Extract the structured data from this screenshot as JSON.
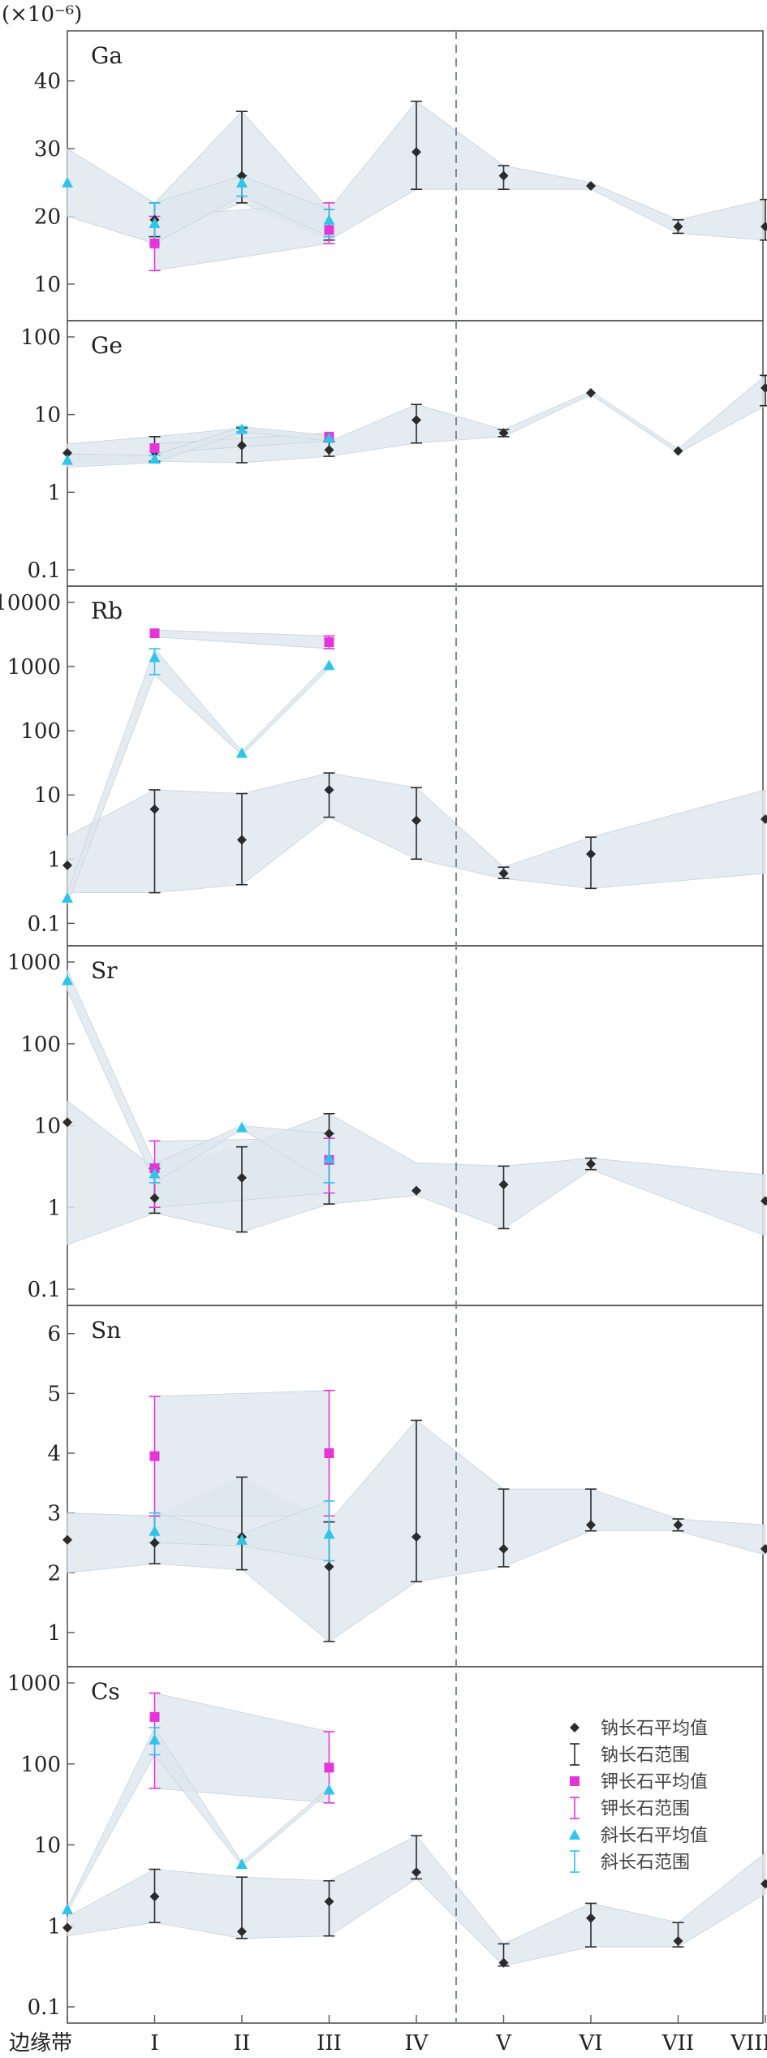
{
  "chart_data": {
    "type": "line",
    "unit_label": "(×10⁻⁶)",
    "x_categories": [
      "边缘带",
      "I",
      "II",
      "III",
      "IV",
      "V",
      "VI",
      "VII",
      "VIII"
    ],
    "divider_after_category": "IV",
    "colors": {
      "albite": "#2b2b2b",
      "kfeldspar": "#e535d8",
      "plagioclase": "#2fc4e8",
      "band": "#dfe8ee",
      "frame": "#555555",
      "divider": "#7b8a96"
    },
    "legend": [
      {
        "key": "albite_avg",
        "label": "钠长石平均值",
        "symbol": "diamond",
        "color": "#2b2b2b"
      },
      {
        "key": "albite_range",
        "label": "钠长石范围",
        "symbol": "errorbar",
        "color": "#2b2b2b"
      },
      {
        "key": "kfeldspar_avg",
        "label": "钾长石平均值",
        "symbol": "square",
        "color": "#e535d8"
      },
      {
        "key": "kfeldspar_range",
        "label": "钾长石范围",
        "symbol": "errorbar",
        "color": "#e535d8"
      },
      {
        "key": "plagioclase_avg",
        "label": "斜长石平均值",
        "symbol": "triangle",
        "color": "#2fc4e8"
      },
      {
        "key": "plagioclase_range",
        "label": "斜长石范围",
        "symbol": "errorbar",
        "color": "#2fc4e8"
      }
    ],
    "panels": [
      {
        "element": "Ga",
        "scale": "linear",
        "ylim": [
          7,
          45
        ],
        "yticks": [
          10,
          20,
          30,
          40
        ],
        "ytick_labels": [
          "10",
          "20",
          "30",
          "40"
        ],
        "series": [
          {
            "name": "钠长石",
            "type": "albite",
            "x": [
              1,
              2,
              3,
              4,
              5,
              6,
              7,
              8
            ],
            "mean": [
              19.5,
              26,
              18,
              29.5,
              26,
              24.5,
              18.5,
              18.5
            ],
            "low": [
              17,
              22,
              16.5,
              24,
              24,
              24,
              17.5,
              16.5
            ],
            "high": [
              22,
              35.5,
              21,
              37,
              27.5,
              25,
              19.5,
              22.5
            ],
            "bars": [
              true,
              true,
              true,
              true,
              true,
              false,
              true,
              true
            ]
          },
          {
            "name": "钾长石",
            "type": "kfeldspar",
            "x": [
              1,
              3
            ],
            "mean": [
              16,
              18
            ],
            "low": [
              12,
              16
            ],
            "high": [
              20,
              22
            ],
            "bars": [
              true,
              true
            ]
          },
          {
            "name": "斜长石",
            "type": "plagioclase",
            "x": [
              0,
              1,
              2,
              3
            ],
            "mean": [
              25,
              19,
              25,
              19.5
            ],
            "low": [
              20,
              16,
              23,
              17
            ],
            "high": [
              30,
              22,
              26,
              21
            ],
            "bars": [
              false,
              true,
              true,
              true
            ]
          }
        ]
      },
      {
        "element": "Ge",
        "scale": "log",
        "ylim": [
          0.1,
          100
        ],
        "yticks": [
          0.1,
          1,
          10,
          100
        ],
        "ytick_labels": [
          "0.1",
          "1",
          "10",
          "100"
        ],
        "series": [
          {
            "name": "钠长石",
            "type": "albite",
            "x": [
              0,
              1,
              2,
              3,
              4,
              5,
              6,
              7,
              8
            ],
            "mean": [
              3.2,
              3.3,
              4,
              3.5,
              8.5,
              5.8,
              19,
              3.4,
              22
            ],
            "low": [
              2.3,
              2.5,
              2.4,
              2.9,
              4.3,
              5.2,
              18,
              3.2,
              13
            ],
            "high": [
              4.2,
              5.2,
              6.7,
              4.5,
              13.5,
              6.4,
              20,
              3.6,
              32
            ],
            "bars": [
              false,
              true,
              true,
              true,
              true,
              true,
              false,
              false,
              true
            ]
          },
          {
            "name": "钾长石",
            "type": "kfeldspar",
            "x": [
              1,
              3
            ],
            "mean": [
              3.7,
              5.2
            ],
            "low": [
              3.2,
              4.6
            ],
            "high": [
              4.2,
              5.8
            ],
            "bars": [
              false,
              false
            ]
          },
          {
            "name": "斜长石",
            "type": "plagioclase",
            "x": [
              0,
              1,
              2,
              3
            ],
            "mean": [
              2.6,
              2.7,
              6.5,
              5
            ],
            "low": [
              2.1,
              2.4,
              6.0,
              4.6
            ],
            "high": [
              3.1,
              3.0,
              7.0,
              5.4
            ],
            "bars": [
              false,
              true,
              true,
              false
            ]
          }
        ]
      },
      {
        "element": "Rb",
        "scale": "log",
        "ylim": [
          0.08,
          10000
        ],
        "yticks": [
          0.1,
          1,
          10,
          100,
          1000,
          10000
        ],
        "ytick_labels": [
          "0.1",
          "1",
          "10",
          "100",
          "1000",
          "10000"
        ],
        "series": [
          {
            "name": "钠长石",
            "type": "albite",
            "x": [
              0,
              1,
              2,
              3,
              4,
              5,
              6,
              8
            ],
            "mean": [
              0.8,
              6,
              2,
              12,
              4,
              0.6,
              1.2,
              4.2
            ],
            "low": [
              0.3,
              0.3,
              0.4,
              4.5,
              1,
              0.5,
              0.35,
              0.6
            ],
            "high": [
              2.3,
              12,
              10.5,
              22,
              13,
              0.75,
              2.2,
              12
            ],
            "bars": [
              false,
              true,
              true,
              true,
              true,
              true,
              true,
              false
            ]
          },
          {
            "name": "钾长石",
            "type": "kfeldspar",
            "x": [
              1,
              3
            ],
            "mean": [
              3300,
              2400
            ],
            "low": [
              2900,
              1900
            ],
            "high": [
              3700,
              3000
            ],
            "bars": [
              false,
              true
            ]
          },
          {
            "name": "斜长石",
            "type": "plagioclase",
            "x": [
              0,
              1,
              2,
              3
            ],
            "mean": [
              0.25,
              1400,
              45,
              1050
            ],
            "low": [
              0.2,
              750,
              42,
              950
            ],
            "high": [
              0.3,
              1900,
              48,
              1150
            ],
            "bars": [
              false,
              true,
              false,
              false
            ]
          }
        ]
      },
      {
        "element": "Sr",
        "scale": "log",
        "ylim": [
          0.1,
          1000
        ],
        "yticks": [
          0.1,
          1,
          10,
          100,
          1000
        ],
        "ytick_labels": [
          "0.1",
          "1",
          "10",
          "100",
          "1000"
        ],
        "series": [
          {
            "name": "钠长石",
            "type": "albite",
            "x": [
              0,
              1,
              2,
              3,
              4,
              5,
              6,
              8
            ],
            "mean": [
              11,
              1.3,
              2.3,
              8,
              1.6,
              1.9,
              3.4,
              1.2
            ],
            "low": [
              0.35,
              0.85,
              0.5,
              1.1,
              1.4,
              0.55,
              2.9,
              0.45
            ],
            "high": [
              20,
              3,
              5.5,
              14,
              3.5,
              3.2,
              4,
              2.5
            ],
            "bars": [
              false,
              true,
              true,
              true,
              false,
              true,
              true,
              false
            ]
          },
          {
            "name": "钾长石",
            "type": "kfeldspar",
            "x": [
              1,
              3
            ],
            "mean": [
              3,
              3.8
            ],
            "low": [
              1,
              1.5
            ],
            "high": [
              6.5,
              7
            ],
            "bars": [
              true,
              true
            ]
          },
          {
            "name": "斜长石",
            "type": "plagioclase",
            "x": [
              0,
              1,
              2,
              3
            ],
            "mean": [
              600,
              2.6,
              9.5,
              4
            ],
            "low": [
              450,
              2,
              9,
              2
            ],
            "high": [
              800,
              3.4,
              10,
              8
            ],
            "bars": [
              false,
              true,
              false,
              true
            ]
          }
        ]
      },
      {
        "element": "Sn",
        "scale": "linear",
        "ylim": [
          0.7,
          6.2
        ],
        "yticks": [
          1,
          2,
          3,
          4,
          5,
          6
        ],
        "ytick_labels": [
          "1",
          "2",
          "3",
          "4",
          "5",
          "6"
        ],
        "series": [
          {
            "name": "钠长石",
            "type": "albite",
            "x": [
              0,
              1,
              2,
              3,
              4,
              5,
              6,
              7,
              8
            ],
            "mean": [
              2.55,
              2.5,
              2.6,
              2.1,
              2.6,
              2.4,
              2.8,
              2.8,
              2.4
            ],
            "low": [
              2.0,
              2.15,
              2.05,
              0.85,
              1.85,
              2.1,
              2.7,
              2.7,
              2.3
            ],
            "high": [
              3.0,
              2.95,
              3.6,
              2.85,
              4.55,
              3.4,
              3.4,
              2.9,
              2.8
            ],
            "bars": [
              false,
              true,
              true,
              true,
              true,
              true,
              true,
              true,
              false
            ]
          },
          {
            "name": "钾长石",
            "type": "kfeldspar",
            "x": [
              1,
              3
            ],
            "mean": [
              3.95,
              4.0
            ],
            "low": [
              2.95,
              2.95
            ],
            "high": [
              4.95,
              5.05
            ],
            "bars": [
              true,
              true
            ]
          },
          {
            "name": "斜长石",
            "type": "plagioclase",
            "x": [
              1,
              2,
              3
            ],
            "mean": [
              2.7,
              2.55,
              2.65
            ],
            "low": [
              2.5,
              2.45,
              2.2
            ],
            "high": [
              3.0,
              2.65,
              3.2
            ],
            "bars": [
              true,
              false,
              true
            ]
          }
        ]
      },
      {
        "element": "Cs",
        "scale": "log",
        "ylim": [
          0.1,
          1000
        ],
        "yticks": [
          0.1,
          1,
          10,
          100,
          1000
        ],
        "ytick_labels": [
          "0.1",
          "1",
          "10",
          "100",
          "1000"
        ],
        "series": [
          {
            "name": "钠长石",
            "type": "albite",
            "x": [
              0,
              1,
              2,
              3,
              4,
              5,
              6,
              7,
              8
            ],
            "mean": [
              0.95,
              2.3,
              0.85,
              2,
              4.6,
              0.35,
              1.25,
              0.65,
              3.3
            ],
            "low": [
              0.75,
              1.1,
              0.7,
              0.75,
              3.8,
              0.32,
              0.55,
              0.55,
              2.5
            ],
            "high": [
              1.3,
              5,
              4,
              3.6,
              13,
              0.6,
              1.9,
              1.1,
              8
            ],
            "bars": [
              false,
              true,
              true,
              true,
              true,
              true,
              true,
              true,
              false
            ]
          },
          {
            "name": "钾长石",
            "type": "kfeldspar",
            "x": [
              1,
              3
            ],
            "mean": [
              380,
              90
            ],
            "low": [
              50,
              33
            ],
            "high": [
              750,
              250
            ],
            "bars": [
              true,
              true
            ]
          },
          {
            "name": "斜长石",
            "type": "plagioclase",
            "x": [
              0,
              1,
              2,
              3
            ],
            "mean": [
              1.6,
              200,
              5.8,
              48
            ],
            "low": [
              1.5,
              130,
              5.5,
              45
            ],
            "high": [
              1.7,
              280,
              6.1,
              51
            ],
            "bars": [
              false,
              true,
              false,
              false
            ]
          }
        ]
      }
    ]
  }
}
